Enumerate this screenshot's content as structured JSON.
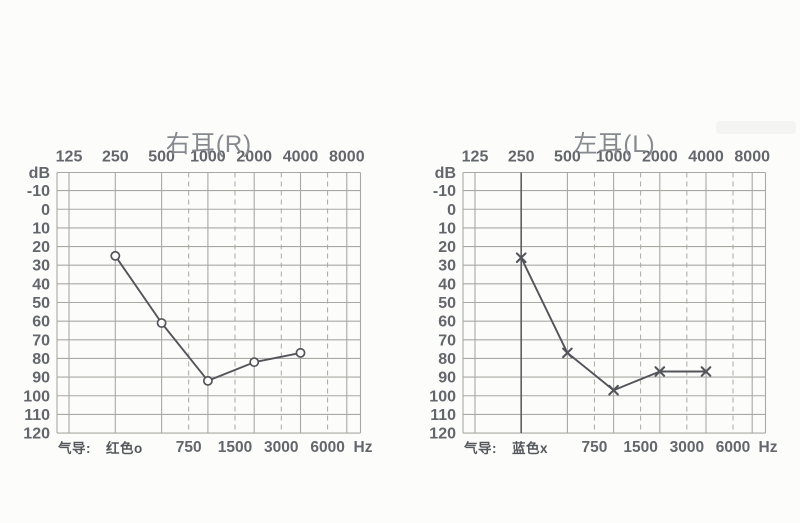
{
  "colors": {
    "background": "#fcfcfb",
    "grid_line": "#a8a9a3",
    "emphasized_line": "#5d5e62",
    "axis_label": "#63666b",
    "title": "#86898e",
    "data_line": "#54555a",
    "legend_text": "#54575b"
  },
  "chart_data": [
    {
      "type": "line",
      "title": "右耳(R)",
      "ylabel": "dB",
      "x_unit": "Hz",
      "legend_label": "气导:",
      "legend_value": "红色o",
      "marker": "circle",
      "x_scale": "log2",
      "grid": true,
      "x_ticks_top": [
        125,
        250,
        500,
        1000,
        2000,
        4000,
        8000
      ],
      "x_ticks_bottom": [
        750,
        1500,
        3000,
        6000
      ],
      "y_ticks": [
        -10,
        0,
        10,
        20,
        30,
        40,
        50,
        60,
        70,
        80,
        90,
        100,
        110,
        120
      ],
      "ylim": [
        -10,
        120
      ],
      "y_inverted": true,
      "series": [
        {
          "name": "气导 红色o",
          "x": [
            250,
            500,
            1000,
            2000,
            4000
          ],
          "y": [
            25,
            61,
            92,
            82,
            77
          ]
        }
      ]
    },
    {
      "type": "line",
      "title": "左耳(L)",
      "ylabel": "dB",
      "x_unit": "Hz",
      "legend_label": "气导:",
      "legend_value": "蓝色x",
      "marker": "x",
      "x_scale": "log2",
      "grid": true,
      "emphasized_gridline_hz": 250,
      "x_ticks_top": [
        125,
        250,
        500,
        1000,
        2000,
        4000,
        8000
      ],
      "x_ticks_bottom": [
        750,
        1500,
        3000,
        6000
      ],
      "y_ticks": [
        -10,
        0,
        10,
        20,
        30,
        40,
        50,
        60,
        70,
        80,
        90,
        100,
        110,
        120
      ],
      "ylim": [
        -10,
        120
      ],
      "y_inverted": true,
      "series": [
        {
          "name": "气导 蓝色x",
          "x": [
            250,
            500,
            1000,
            2000,
            4000
          ],
          "y": [
            26,
            77,
            97,
            87,
            87
          ]
        }
      ]
    }
  ]
}
